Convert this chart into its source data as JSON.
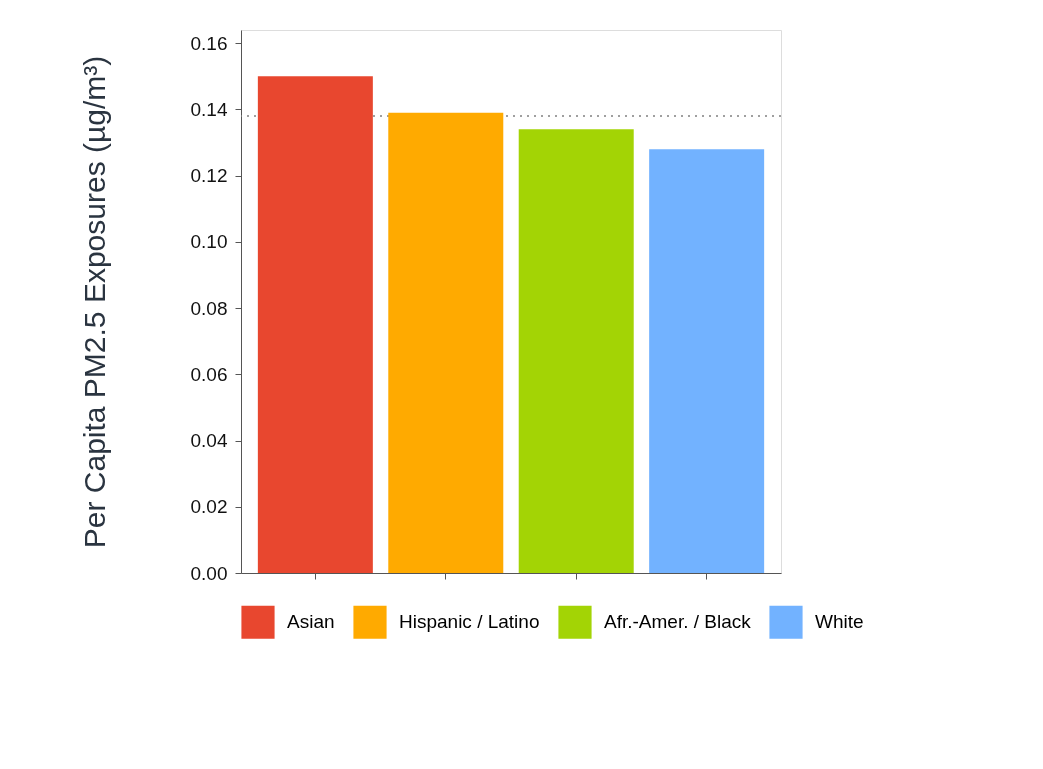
{
  "chart_data": {
    "type": "bar",
    "ylabel": "Per Capita PM2.5 Exposures (µg/m³)",
    "categories": [
      null,
      null,
      null,
      null
    ],
    "stacked": true,
    "series": [
      {
        "name": "Asian",
        "color": "#e8472f",
        "values": [
          0.15,
          null,
          null,
          null
        ]
      },
      {
        "name": "Hispanic / Latino",
        "color": "#ffaa00",
        "values": [
          null,
          0.139,
          null,
          null
        ]
      },
      {
        "name": "Afr.-Amer. / Black",
        "color": "#a3d405",
        "values": [
          null,
          null,
          0.134,
          null
        ]
      },
      {
        "name": "White",
        "color": "#72b2ff",
        "values": [
          null,
          null,
          null,
          0.128
        ]
      }
    ],
    "ylim": [
      0,
      0.164
    ],
    "yticks": [
      {
        "value": 0,
        "label": "0.00"
      },
      0.02,
      0.04,
      0.06,
      0.08,
      {
        "value": 0.1,
        "label": "0.10"
      },
      0.12,
      0.14,
      0.16
    ],
    "ref_lines": [
      {
        "axis": "y",
        "value": 0.138,
        "color": "#808080",
        "line_style": "dotted"
      }
    ],
    "tick_labels": "y",
    "grid": false,
    "legend": "bottom"
  }
}
